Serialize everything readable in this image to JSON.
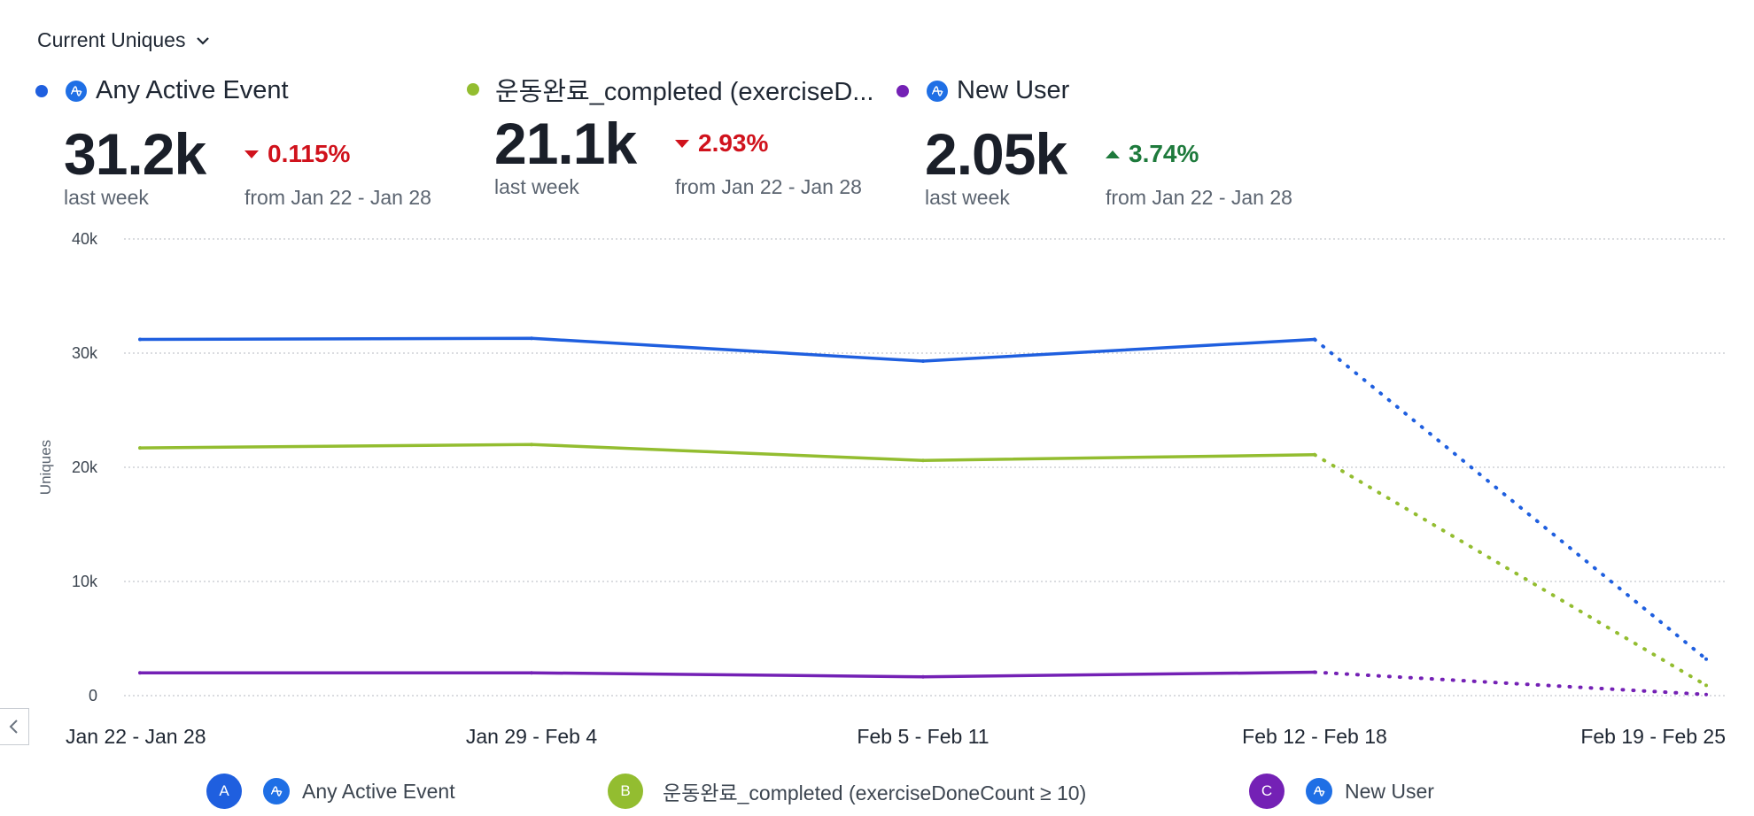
{
  "metric_selector": {
    "label": "Current Uniques"
  },
  "colors": {
    "any_active_event": "#1f5fdf",
    "completed": "#93bd30",
    "new_user": "#7421b5",
    "up": "#1e7a3c",
    "down": "#d0121c",
    "event_icon": "#1f6fe5"
  },
  "summary": [
    {
      "name": "Any Active Event",
      "value": "31.2k",
      "period": "last week",
      "delta": "0.115%",
      "direction": "down",
      "compare": "from Jan 22 - Jan 28",
      "icon": "amplitude-event-icon"
    },
    {
      "name": "운동완료_completed (exerciseD...",
      "value": "21.1k",
      "period": "last week",
      "delta": "2.93%",
      "direction": "down",
      "compare": "from Jan 22 - Jan 28"
    },
    {
      "name": "New User",
      "value": "2.05k",
      "period": "last week",
      "delta": "3.74%",
      "direction": "up",
      "compare": "from Jan 22 - Jan 28",
      "icon": "amplitude-event-icon"
    }
  ],
  "chart_data": {
    "type": "line",
    "categories": [
      "Jan 22 - Jan 28",
      "Jan 29 - Feb 4",
      "Feb 5 - Feb 11",
      "Feb 12 - Feb 18",
      "Feb 19 - Feb 25"
    ],
    "series": [
      {
        "name": "Any Active Event",
        "values": [
          31200,
          31300,
          29300,
          31200,
          3200
        ],
        "color": "#1f5fdf"
      },
      {
        "name": "운동완료_completed (exerciseDoneCount ≥ 10)",
        "values": [
          21700,
          22000,
          20600,
          21100,
          900
        ],
        "color": "#93bd30"
      },
      {
        "name": "New User",
        "values": [
          2000,
          2000,
          1650,
          2050,
          100
        ],
        "color": "#7421b5"
      }
    ],
    "incomplete_last_point": true,
    "ylabel": "Uniques",
    "ylim": [
      0,
      40000
    ],
    "yticks": [
      0,
      10000,
      20000,
      30000,
      40000
    ],
    "ytick_labels": [
      "0",
      "10k",
      "20k",
      "30k",
      "40k"
    ],
    "grid": true
  },
  "legend": [
    {
      "badge": "A",
      "label": "Any Active Event",
      "color": "#1f5fdf",
      "icon": "amplitude-event-icon"
    },
    {
      "badge": "B",
      "label": "운동완료_completed (exerciseDoneCount ≥ 10)",
      "color": "#93bd30"
    },
    {
      "badge": "C",
      "label": "New User",
      "color": "#7421b5",
      "icon": "amplitude-event-icon"
    }
  ]
}
